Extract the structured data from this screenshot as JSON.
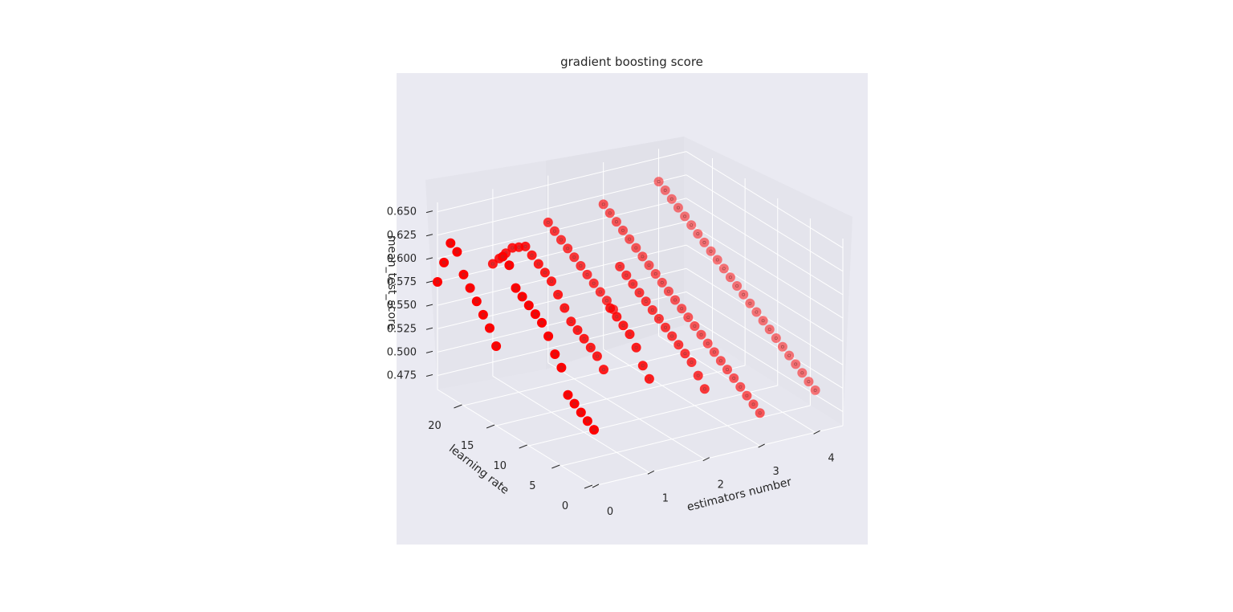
{
  "chart_data": {
    "type": "scatter",
    "projection": "3d",
    "title": "gradient boosting score",
    "xlabel": "estimators number",
    "ylabel": "learning rate",
    "zlabel": "mean_test_score",
    "x_ticks": [
      "0",
      "1",
      "2",
      "3",
      "4"
    ],
    "y_ticks": [
      "0",
      "5",
      "10",
      "15",
      "20"
    ],
    "z_ticks": [
      "0.475",
      "0.500",
      "0.525",
      "0.550",
      "0.575",
      "0.600",
      "0.625",
      "0.650"
    ],
    "xlim": [
      0,
      4.5
    ],
    "ylim": [
      0,
      24
    ],
    "zlim": [
      0.46,
      0.66
    ],
    "grid": true,
    "marker_color": "#ff0000",
    "background_color": "#eaeaf2",
    "pane_color": "#e4e4ec",
    "grid_color": "#ffffff",
    "series": [
      {
        "x": [
          0,
          0,
          0,
          0,
          0,
          0,
          0,
          0,
          0,
          0,
          0,
          0,
          0,
          0,
          0,
          0,
          0,
          0,
          0,
          0,
          0,
          0,
          0,
          0,
          0,
          1,
          1,
          1,
          1,
          1,
          1,
          1,
          1,
          1,
          1,
          1,
          1,
          1,
          1,
          1,
          1,
          1,
          1,
          1,
          1,
          1,
          1,
          1,
          1,
          1,
          2,
          2,
          2,
          2,
          2,
          2,
          2,
          2,
          2,
          2,
          2,
          2,
          2,
          2,
          2,
          2,
          2,
          2,
          2,
          2,
          2,
          2,
          2,
          2,
          2,
          3,
          3,
          3,
          3,
          3,
          3,
          3,
          3,
          3,
          3,
          3,
          3,
          3,
          3,
          3,
          3,
          3,
          3,
          3,
          3,
          3,
          3,
          3,
          3,
          3,
          4,
          4,
          4,
          4,
          4,
          4,
          4,
          4,
          4,
          4,
          4,
          4,
          4,
          4,
          4,
          4,
          4,
          4,
          4,
          4,
          4,
          4,
          4,
          4,
          4
        ],
        "y": [
          0,
          1,
          2,
          3,
          4,
          5,
          6,
          7,
          8,
          9,
          10,
          11,
          12,
          13,
          14,
          15,
          16,
          17,
          18,
          19,
          20,
          21,
          22,
          23,
          24,
          0,
          1,
          2,
          3,
          4,
          5,
          6,
          7,
          8,
          9,
          10,
          11,
          12,
          13,
          14,
          15,
          16,
          17,
          18,
          19,
          20,
          21,
          22,
          23,
          24,
          0,
          1,
          2,
          3,
          4,
          5,
          6,
          7,
          8,
          9,
          10,
          11,
          12,
          13,
          14,
          15,
          16,
          17,
          18,
          19,
          20,
          21,
          22,
          23,
          24,
          0,
          1,
          2,
          3,
          4,
          5,
          6,
          7,
          8,
          9,
          10,
          11,
          12,
          13,
          14,
          15,
          16,
          17,
          18,
          19,
          20,
          21,
          22,
          23,
          24,
          0,
          1,
          2,
          3,
          4,
          5,
          6,
          7,
          8,
          9,
          10,
          11,
          12,
          13,
          14,
          15,
          16,
          17,
          18,
          19,
          20,
          21,
          22,
          23,
          24
        ],
        "z": [
          0.52,
          0.525,
          0.53,
          0.535,
          0.54,
          0.565,
          0.575,
          0.59,
          0.6,
          0.605,
          0.61,
          0.615,
          0.62,
          0.64,
          0.645,
          0.545,
          0.56,
          0.57,
          0.58,
          0.59,
          0.6,
          0.62,
          0.625,
          0.6,
          0.575,
          0.56,
          0.57,
          0.585,
          0.595,
          0.6,
          0.605,
          0.61,
          0.54,
          0.55,
          0.555,
          0.56,
          0.565,
          0.57,
          0.58,
          0.59,
          0.6,
          0.605,
          0.61,
          0.615,
          0.62,
          0.615,
          0.61,
          0.6,
          0.59,
          0.58,
          0.535,
          0.545,
          0.555,
          0.56,
          0.565,
          0.57,
          0.575,
          0.58,
          0.585,
          0.59,
          0.595,
          0.6,
          0.605,
          0.61,
          0.56,
          0.565,
          0.57,
          0.575,
          0.58,
          0.585,
          0.59,
          0.595,
          0.6,
          0.605,
          0.61,
          0.495,
          0.5,
          0.505,
          0.51,
          0.515,
          0.52,
          0.525,
          0.53,
          0.535,
          0.54,
          0.545,
          0.55,
          0.555,
          0.56,
          0.565,
          0.57,
          0.575,
          0.58,
          0.585,
          0.59,
          0.595,
          0.6,
          0.605,
          0.61,
          0.615,
          0.505,
          0.51,
          0.515,
          0.52,
          0.525,
          0.53,
          0.535,
          0.54,
          0.545,
          0.55,
          0.555,
          0.56,
          0.565,
          0.57,
          0.575,
          0.58,
          0.585,
          0.59,
          0.595,
          0.6,
          0.605,
          0.61,
          0.615,
          0.62,
          0.625
        ]
      }
    ]
  }
}
